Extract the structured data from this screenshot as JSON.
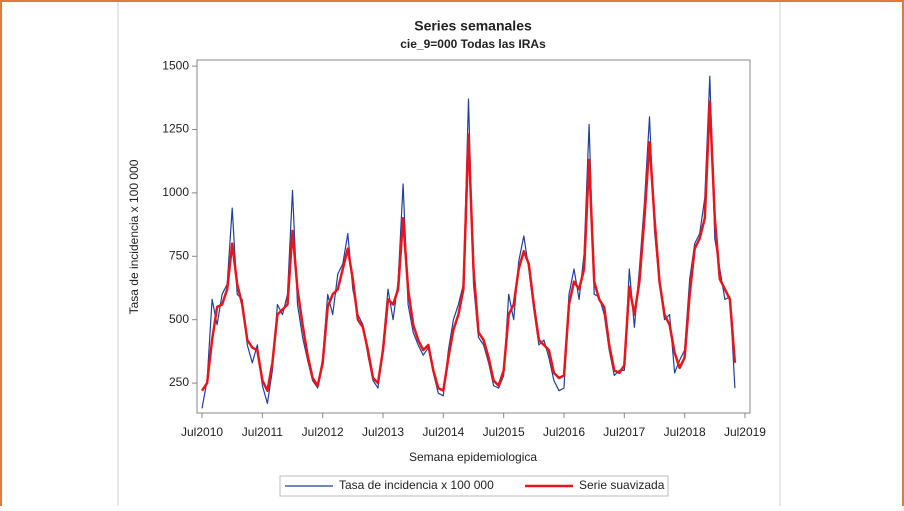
{
  "chart_data": {
    "type": "line",
    "title": "Series semanales",
    "subtitle": "cie_9=000 Todas las IRAs",
    "x_label": "Semana epidemiologica",
    "y_label": "Tasa de incidencia x 100 000",
    "x": [
      "2010-07",
      "2010-08",
      "2010-09",
      "2010-10",
      "2010-11",
      "2010-12",
      "2011-01",
      "2011-02",
      "2011-03",
      "2011-04",
      "2011-05",
      "2011-06",
      "2011-07",
      "2011-08",
      "2011-09",
      "2011-10",
      "2011-11",
      "2011-12",
      "2012-01",
      "2012-02",
      "2012-03",
      "2012-04",
      "2012-05",
      "2012-06",
      "2012-07",
      "2012-08",
      "2012-09",
      "2012-10",
      "2012-11",
      "2012-12",
      "2013-01",
      "2013-02",
      "2013-03",
      "2013-04",
      "2013-05",
      "2013-06",
      "2013-07",
      "2013-08",
      "2013-09",
      "2013-10",
      "2013-11",
      "2013-12",
      "2014-01",
      "2014-02",
      "2014-03",
      "2014-04",
      "2014-05",
      "2014-06",
      "2014-07",
      "2014-08",
      "2014-09",
      "2014-10",
      "2014-11",
      "2014-12",
      "2015-01",
      "2015-02",
      "2015-03",
      "2015-04",
      "2015-05",
      "2015-06",
      "2015-07",
      "2015-08",
      "2015-09",
      "2015-10",
      "2015-11",
      "2015-12",
      "2016-01",
      "2016-02",
      "2016-03",
      "2016-04",
      "2016-05",
      "2016-06",
      "2016-07",
      "2016-08",
      "2016-09",
      "2016-10",
      "2016-11",
      "2016-12",
      "2017-01",
      "2017-02",
      "2017-03",
      "2017-04",
      "2017-05",
      "2017-06",
      "2017-07",
      "2017-08",
      "2017-09",
      "2017-10",
      "2017-11",
      "2017-12",
      "2018-01",
      "2018-02",
      "2018-03",
      "2018-04",
      "2018-05",
      "2018-06",
      "2018-07",
      "2018-08",
      "2018-09",
      "2018-10",
      "2018-11",
      "2018-12",
      "2019-01",
      "2019-02",
      "2019-03",
      "2019-04",
      "2019-05"
    ],
    "series": [
      {
        "name": "Tasa de incidencia x 100 000",
        "color": "#1f3f9f",
        "values": [
          150,
          260,
          580,
          480,
          600,
          640,
          940,
          600,
          580,
          400,
          330,
          400,
          240,
          170,
          300,
          560,
          520,
          600,
          1010,
          560,
          430,
          340,
          260,
          230,
          350,
          600,
          520,
          680,
          720,
          840,
          620,
          520,
          480,
          360,
          260,
          230,
          400,
          620,
          500,
          650,
          1035,
          560,
          450,
          400,
          360,
          390,
          290,
          210,
          200,
          380,
          500,
          560,
          640,
          1370,
          640,
          430,
          400,
          330,
          240,
          230,
          280,
          600,
          500,
          730,
          830,
          700,
          540,
          400,
          420,
          350,
          260,
          220,
          230,
          600,
          700,
          580,
          760,
          1270,
          600,
          590,
          520,
          380,
          280,
          300,
          300,
          700,
          470,
          700,
          960,
          1300,
          850,
          640,
          500,
          520,
          290,
          340,
          380,
          660,
          800,
          840,
          980,
          1460,
          820,
          700,
          580,
          590,
          230
        ]
      },
      {
        "name": "Serie suavizada",
        "color": "#e8161b",
        "values": [
          220,
          250,
          420,
          550,
          560,
          620,
          800,
          640,
          560,
          420,
          390,
          380,
          260,
          220,
          330,
          520,
          540,
          560,
          850,
          620,
          480,
          360,
          270,
          240,
          330,
          550,
          600,
          620,
          700,
          780,
          660,
          500,
          470,
          380,
          270,
          250,
          380,
          580,
          560,
          620,
          900,
          620,
          480,
          420,
          380,
          400,
          300,
          230,
          220,
          350,
          460,
          520,
          620,
          1230,
          700,
          450,
          420,
          350,
          260,
          240,
          300,
          520,
          560,
          700,
          770,
          720,
          560,
          420,
          400,
          380,
          290,
          270,
          280,
          560,
          650,
          620,
          700,
          1130,
          650,
          580,
          550,
          400,
          300,
          290,
          320,
          630,
          520,
          650,
          900,
          1200,
          900,
          650,
          520,
          480,
          370,
          310,
          350,
          600,
          780,
          820,
          900,
          1360,
          900,
          660,
          620,
          580,
          330
        ]
      }
    ],
    "xlim": [
      "2010-06",
      "2019-08"
    ],
    "xticks": [
      {
        "value": "2010-07",
        "label": "Jul2010"
      },
      {
        "value": "2011-07",
        "label": "Jul2011"
      },
      {
        "value": "2012-07",
        "label": "Jul2012"
      },
      {
        "value": "2013-07",
        "label": "Jul2013"
      },
      {
        "value": "2014-07",
        "label": "Jul2014"
      },
      {
        "value": "2015-07",
        "label": "Jul2015"
      },
      {
        "value": "2016-07",
        "label": "Jul2016"
      },
      {
        "value": "2017-07",
        "label": "Jul2017"
      },
      {
        "value": "2018-07",
        "label": "Jul2018"
      },
      {
        "value": "2019-07",
        "label": "Jul2019"
      }
    ],
    "ylim": [
      132,
      1524
    ],
    "yticks": [
      250,
      500,
      750,
      1000,
      1250,
      1500
    ],
    "grid": false,
    "legend": "bottom"
  }
}
